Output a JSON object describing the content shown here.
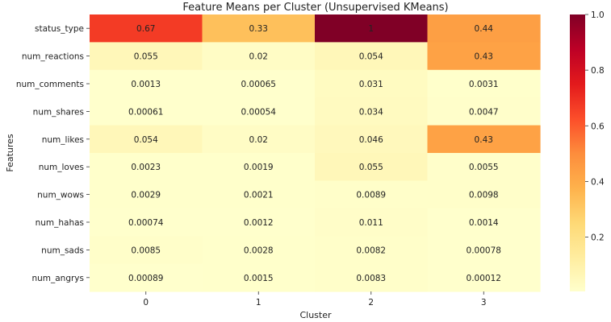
{
  "chart_data": {
    "type": "heatmap",
    "title": "Feature Means per Cluster (Unsupervised KMeans)",
    "xlabel": "Cluster",
    "ylabel": "Features",
    "columns": [
      "0",
      "1",
      "2",
      "3"
    ],
    "rows": [
      "status_type",
      "num_reactions",
      "num_comments",
      "num_shares",
      "num_likes",
      "num_loves",
      "num_wows",
      "num_hahas",
      "num_sads",
      "num_angrys"
    ],
    "values": [
      [
        0.67,
        0.33,
        1.0,
        0.44
      ],
      [
        0.055,
        0.02,
        0.054,
        0.43
      ],
      [
        0.0013,
        0.00065,
        0.031,
        0.0031
      ],
      [
        0.00061,
        0.00054,
        0.034,
        0.0047
      ],
      [
        0.054,
        0.02,
        0.046,
        0.43
      ],
      [
        0.0023,
        0.0019,
        0.055,
        0.0055
      ],
      [
        0.0029,
        0.0021,
        0.0089,
        0.0098
      ],
      [
        0.00074,
        0.0012,
        0.011,
        0.0014
      ],
      [
        0.0085,
        0.0028,
        0.0082,
        0.00078
      ],
      [
        0.00089,
        0.0015,
        0.0083,
        0.00012
      ]
    ],
    "labels": [
      [
        "0.67",
        "0.33",
        "1",
        "0.44"
      ],
      [
        "0.055",
        "0.02",
        "0.054",
        "0.43"
      ],
      [
        "0.0013",
        "0.00065",
        "0.031",
        "0.0031"
      ],
      [
        "0.00061",
        "0.00054",
        "0.034",
        "0.0047"
      ],
      [
        "0.054",
        "0.02",
        "0.046",
        "0.43"
      ],
      [
        "0.0023",
        "0.0019",
        "0.055",
        "0.0055"
      ],
      [
        "0.0029",
        "0.0021",
        "0.0089",
        "0.0098"
      ],
      [
        "0.00074",
        "0.0012",
        "0.011",
        "0.0014"
      ],
      [
        "0.0085",
        "0.0028",
        "0.0082",
        "0.00078"
      ],
      [
        "0.00089",
        "0.0015",
        "0.0083",
        "0.00012"
      ]
    ],
    "colorbar": {
      "colormap": "YlOrRd",
      "vmin": 0,
      "vmax": 1,
      "ticks": [
        0.2,
        0.4,
        0.6,
        0.8,
        1.0
      ],
      "tick_labels": [
        "0.2",
        "0.4",
        "0.6",
        "0.8",
        "1.0"
      ]
    }
  }
}
